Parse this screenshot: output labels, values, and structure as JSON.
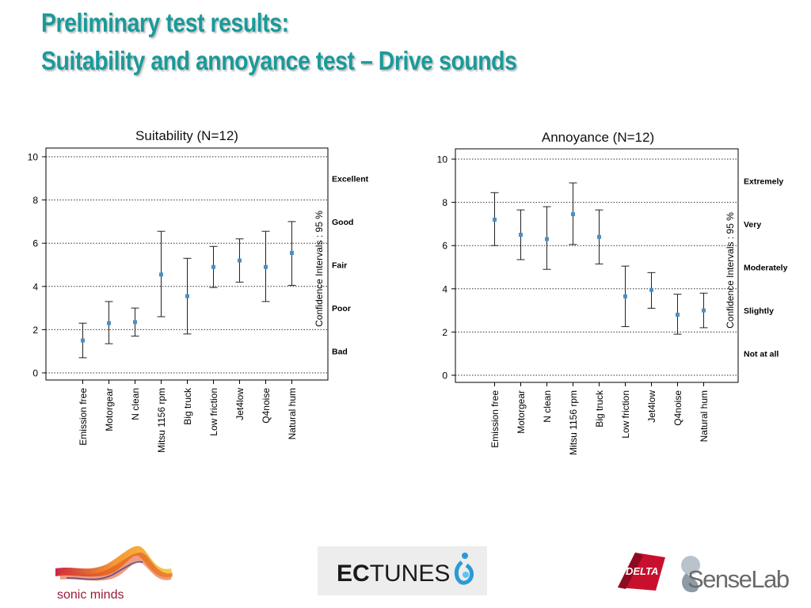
{
  "page": {
    "title_line1": "Preliminary test results:",
    "title_line2": "Suitability and annoyance test – Drive sounds"
  },
  "colors": {
    "title": "#1a9a9a",
    "point": "#4a90c8",
    "errorbar": "#222222"
  },
  "chart_data": [
    {
      "type": "scatter",
      "title": "Suitability (N=12)",
      "ylabel_right": "Confidence Intervals : 95 %",
      "ylim": [
        0,
        10
      ],
      "yticks": [
        0,
        2,
        4,
        6,
        8,
        10
      ],
      "grid": true,
      "categories": [
        "Emission free",
        "Motorgear",
        "N clean",
        "Mitsu 1156 rpm",
        "Big truck",
        "Low friction",
        "Jet4low",
        "Q4noise",
        "Natural hum"
      ],
      "means": [
        1.5,
        2.3,
        2.35,
        4.55,
        3.55,
        4.9,
        5.2,
        4.9,
        5.55
      ],
      "lower": [
        0.7,
        1.35,
        1.7,
        2.6,
        1.8,
        3.95,
        4.2,
        3.3,
        4.05
      ],
      "upper": [
        2.3,
        3.3,
        3.0,
        6.55,
        5.3,
        5.85,
        6.2,
        6.55,
        7.0
      ],
      "scale_labels": [
        {
          "label": "Excellent",
          "y": 9
        },
        {
          "label": "Good",
          "y": 7
        },
        {
          "label": "Fair",
          "y": 5
        },
        {
          "label": "Poor",
          "y": 3
        },
        {
          "label": "Bad",
          "y": 1
        }
      ]
    },
    {
      "type": "scatter",
      "title": "Annoyance (N=12)",
      "ylabel_right": "Confidence Intervals : 95 %",
      "ylim": [
        0,
        10
      ],
      "yticks": [
        0,
        2,
        4,
        6,
        8,
        10
      ],
      "grid": true,
      "categories": [
        "Emission free",
        "Motorgear",
        "N clean",
        "Mitsu 1156 rpm",
        "Big truck",
        "Low friction",
        "Jet4low",
        "Q4noise",
        "Natural hum"
      ],
      "means": [
        7.2,
        6.5,
        6.3,
        7.45,
        6.4,
        3.65,
        3.95,
        2.8,
        3.0
      ],
      "lower": [
        6.0,
        5.35,
        4.9,
        6.05,
        5.15,
        2.25,
        3.1,
        1.9,
        2.2
      ],
      "upper": [
        8.45,
        7.65,
        7.8,
        8.9,
        7.65,
        5.05,
        4.75,
        3.75,
        3.8
      ],
      "scale_labels": [
        {
          "label": "Extremely",
          "y": 9
        },
        {
          "label": "Very",
          "y": 7
        },
        {
          "label": "Moderately",
          "y": 5
        },
        {
          "label": "Slightly",
          "y": 3
        },
        {
          "label": "Not at all",
          "y": 1
        }
      ]
    }
  ],
  "logos": {
    "sonic": "sonic minds",
    "ec": "EC",
    "tunes": "TUNES",
    "delta": "DELTA",
    "sense": "SenseLab"
  }
}
